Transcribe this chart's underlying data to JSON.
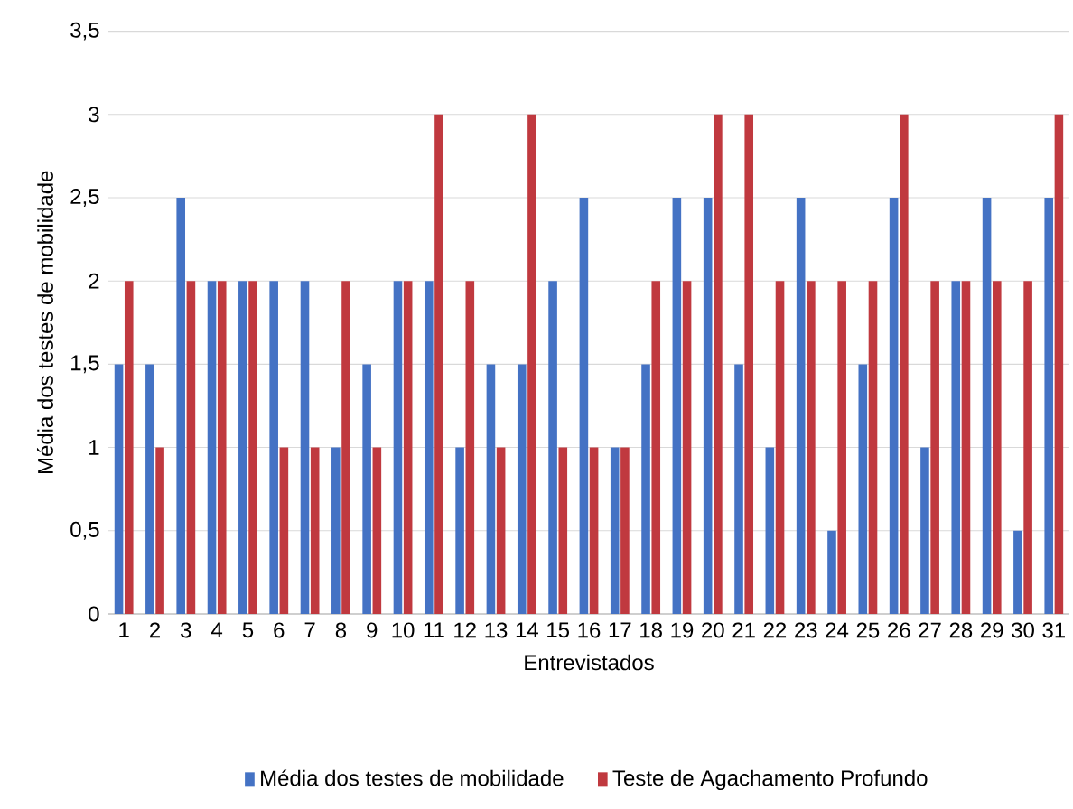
{
  "chart_data": {
    "type": "bar",
    "ylabel": "Média dos testes de mobilidade",
    "xlabel": "Entrevistados",
    "categories": [
      "1",
      "2",
      "3",
      "4",
      "5",
      "6",
      "7",
      "8",
      "9",
      "10",
      "11",
      "12",
      "13",
      "14",
      "15",
      "16",
      "17",
      "18",
      "19",
      "20",
      "21",
      "22",
      "23",
      "24",
      "25",
      "26",
      "27",
      "28",
      "29",
      "30",
      "31"
    ],
    "series": [
      {
        "name": "Média dos testes de mobilidade",
        "color": "#4472c4",
        "values": [
          1.5,
          1.5,
          2.5,
          2,
          2,
          2,
          2,
          1,
          1.5,
          2,
          2,
          1,
          1.5,
          1.5,
          2,
          2.5,
          1,
          1.5,
          2.5,
          2.5,
          1.5,
          1,
          2.5,
          0.5,
          1.5,
          2.5,
          1,
          2,
          2.5,
          0.5,
          2.5
        ]
      },
      {
        "name": "Teste de Agachamento Profundo",
        "color": "#c0393f",
        "values": [
          2,
          1,
          2,
          2,
          2,
          1,
          1,
          2,
          1,
          2,
          3,
          2,
          1,
          3,
          1,
          1,
          1,
          2,
          2,
          3,
          3,
          2,
          2,
          2,
          2,
          3,
          2,
          2,
          2,
          2,
          3
        ]
      }
    ],
    "ylim": [
      0,
      3.5
    ],
    "yticks": [
      0,
      {
        "value": 0.5,
        "label": "0,5"
      },
      1,
      {
        "value": 1.5,
        "label": "1,5"
      },
      2,
      {
        "value": 2.5,
        "label": "2,5"
      },
      3,
      {
        "value": 3.5,
        "label": "3,5"
      }
    ],
    "grid": "y",
    "legend": "bottom"
  }
}
